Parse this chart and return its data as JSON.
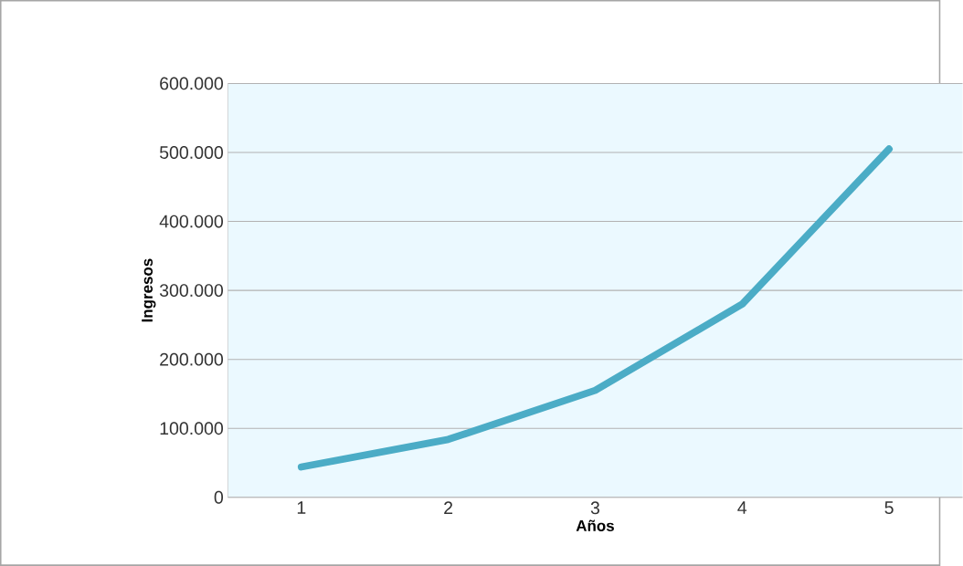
{
  "chart_data": {
    "type": "line",
    "xlabel": "Años",
    "ylabel": "Ingresos",
    "categories": [
      "1",
      "2",
      "3",
      "4",
      "5"
    ],
    "values": [
      44000,
      84000,
      155000,
      280000,
      505000
    ],
    "color": "#4bacc6",
    "ylim": [
      0,
      600000
    ],
    "yticks": [
      {
        "value": 0,
        "label": "0"
      },
      {
        "value": 100000,
        "label": "100.000"
      },
      {
        "value": 200000,
        "label": "200.000"
      },
      {
        "value": 300000,
        "label": "300.000"
      },
      {
        "value": 400000,
        "label": "400.000"
      },
      {
        "value": 500000,
        "label": "500.000"
      },
      {
        "value": 600000,
        "label": "600.000"
      }
    ],
    "grid": "y",
    "marker": "none",
    "line_style": "solid"
  }
}
